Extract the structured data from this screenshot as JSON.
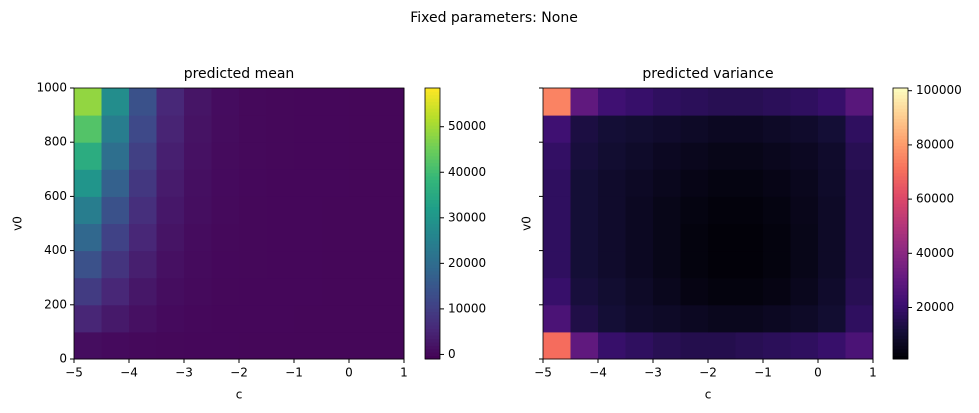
{
  "title": "Fixed parameters: None",
  "chart_data": [
    {
      "type": "heatmap",
      "title": "predicted mean",
      "x_label": "c",
      "y_label": "v0",
      "colormap": "viridis",
      "x": [
        -4.75,
        -4.25,
        -3.75,
        -3.25,
        -2.75,
        -2.25,
        -1.75,
        -1.25,
        -0.75,
        -0.25,
        0.25,
        0.75
      ],
      "y": [
        50,
        150,
        250,
        350,
        450,
        550,
        650,
        750,
        850,
        950
      ],
      "z": [
        [
          1040,
          600,
          300,
          120,
          50,
          20,
          8,
          3,
          1,
          0,
          0,
          0
        ],
        [
          5252,
          3030,
          1515,
          606,
          253,
          101,
          40,
          15,
          6,
          2,
          1,
          1
        ],
        [
          9360,
          5400,
          2700,
          1080,
          450,
          180,
          72,
          27,
          11,
          4,
          2,
          1
        ],
        [
          13936,
          8040,
          4020,
          1608,
          670,
          268,
          107,
          40,
          16,
          5,
          3,
          1
        ],
        [
          18928,
          10920,
          5460,
          2184,
          910,
          364,
          146,
          55,
          22,
          7,
          4,
          2
        ],
        [
          24284,
          14010,
          7005,
          2802,
          1168,
          467,
          187,
          70,
          28,
          9,
          5,
          2
        ],
        [
          29952,
          17280,
          8640,
          3456,
          1440,
          576,
          230,
          86,
          35,
          12,
          6,
          3
        ],
        [
          35880,
          20700,
          10350,
          4140,
          1725,
          690,
          276,
          104,
          41,
          14,
          7,
          3
        ],
        [
          42120,
          24300,
          12150,
          4860,
          2025,
          810,
          324,
          122,
          49,
          16,
          8,
          4
        ],
        [
          48620,
          28050,
          14025,
          5610,
          2338,
          935,
          374,
          140,
          56,
          19,
          9,
          5
        ]
      ],
      "xlim": [
        -5,
        1
      ],
      "xticks": [
        {
          "value": -5,
          "label": "−5"
        },
        {
          "value": -4,
          "label": "−4"
        },
        {
          "value": -3,
          "label": "−3"
        },
        {
          "value": -2,
          "label": "−2"
        },
        {
          "value": -1,
          "label": "−1"
        },
        0,
        1
      ],
      "ylim": [
        0,
        1000
      ],
      "yticks": [
        0,
        200,
        400,
        600,
        800,
        1000
      ],
      "zlim": [
        -1000,
        58500
      ],
      "zticks": [
        0,
        10000,
        20000,
        30000,
        40000,
        50000
      ]
    },
    {
      "type": "heatmap",
      "title": "predicted variance",
      "x_label": "c",
      "y_label": "v0",
      "colormap": "magma",
      "x": [
        -4.75,
        -4.25,
        -3.75,
        -3.25,
        -2.75,
        -2.25,
        -1.75,
        -1.25,
        -0.75,
        -0.25,
        0.25,
        0.75
      ],
      "y": [
        50,
        150,
        250,
        350,
        450,
        550,
        650,
        750,
        850,
        950
      ],
      "z": [
        [
          70000,
          30000,
          20000,
          18000,
          16000,
          15000,
          15000,
          16000,
          17000,
          18000,
          20000,
          25000
        ],
        [
          25000,
          14000,
          11000,
          9000,
          8000,
          7000,
          6000,
          6000,
          7000,
          8000,
          10000,
          18000
        ],
        [
          20000,
          12000,
          10000,
          8000,
          6000,
          4000,
          3000,
          3000,
          4000,
          6000,
          9000,
          16000
        ],
        [
          18000,
          11000,
          9000,
          7000,
          5000,
          3000,
          2000,
          2000,
          3000,
          5000,
          8000,
          15000
        ],
        [
          18000,
          11000,
          9000,
          7000,
          5000,
          3000,
          2000,
          2000,
          3000,
          5000,
          8000,
          15000
        ],
        [
          18000,
          11000,
          9000,
          7000,
          5000,
          3500,
          2500,
          2500,
          3500,
          5500,
          8000,
          15000
        ],
        [
          18000,
          11000,
          9000,
          7500,
          6000,
          4500,
          3500,
          3500,
          4500,
          6000,
          8500,
          15000
        ],
        [
          19000,
          12000,
          10000,
          8500,
          7000,
          6000,
          5000,
          5000,
          6000,
          7000,
          9000,
          16000
        ],
        [
          22000,
          13000,
          11000,
          10000,
          9000,
          8000,
          7000,
          7000,
          8000,
          9000,
          11000,
          18000
        ],
        [
          75000,
          30000,
          22000,
          20000,
          18000,
          17000,
          16000,
          16000,
          17000,
          18000,
          20000,
          28000
        ]
      ],
      "xlim": [
        -5,
        1
      ],
      "xticks": [
        {
          "value": -5,
          "label": "−5"
        },
        {
          "value": -4,
          "label": "−4"
        },
        {
          "value": -3,
          "label": "−3"
        },
        {
          "value": -2,
          "label": "−2"
        },
        {
          "value": -1,
          "label": "−1"
        },
        0,
        1
      ],
      "ylim": [
        0,
        1000
      ],
      "yticks": [
        0,
        200,
        400,
        600,
        800,
        1000
      ],
      "zlim": [
        1000,
        101000
      ],
      "zticks": [
        20000,
        40000,
        60000,
        80000,
        100000
      ]
    }
  ]
}
